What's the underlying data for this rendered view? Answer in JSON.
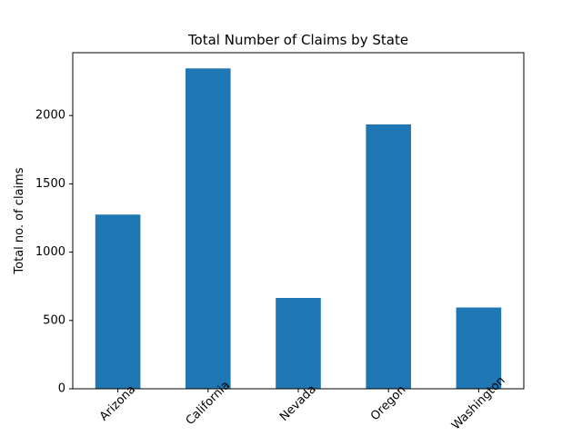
{
  "chart_data": {
    "type": "bar",
    "title": "Total Number of Claims by State",
    "xlabel": "",
    "ylabel": "Total no. of claims",
    "categories": [
      "Arizona",
      "California",
      "Nevada",
      "Oregon",
      "Washington"
    ],
    "values": [
      1275,
      2345,
      665,
      1935,
      595
    ],
    "ylim": [
      0,
      2460
    ],
    "yticks": [
      0,
      500,
      1000,
      1500,
      2000
    ],
    "bar_color": "#1f77b4",
    "grid": false,
    "legend": "none"
  }
}
